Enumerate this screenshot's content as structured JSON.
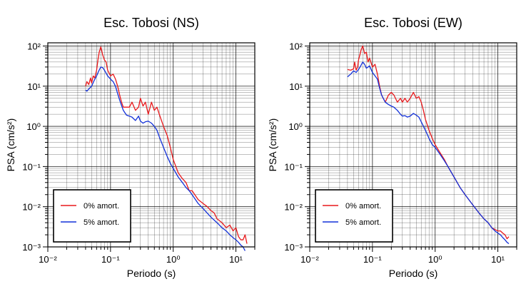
{
  "colors": {
    "undamped": "#e8191c",
    "damped": "#1230d8",
    "grid": "#000000"
  },
  "chart_data": [
    {
      "type": "line",
      "title": "Esc. Tobosi (NS)",
      "xlabel": "Periodo (s)",
      "ylabel": "PSA (cm/s²)",
      "xscale": "log",
      "yscale": "log",
      "xlim": [
        0.01,
        20
      ],
      "ylim": [
        0.001,
        120
      ],
      "xticks": [
        {
          "v": 0.01,
          "label": "10⁻²"
        },
        {
          "v": 0.1,
          "label": "10⁻¹"
        },
        {
          "v": 1,
          "label": "10⁰"
        },
        {
          "v": 10,
          "label": "10¹"
        }
      ],
      "yticks": [
        {
          "v": 0.001,
          "label": "10⁻³"
        },
        {
          "v": 0.01,
          "label": "10⁻²"
        },
        {
          "v": 0.1,
          "label": "10⁻¹"
        },
        {
          "v": 1,
          "label": "10⁰"
        },
        {
          "v": 10,
          "label": "10¹"
        },
        {
          "v": 100,
          "label": "10²"
        }
      ],
      "grid": true,
      "legend": {
        "position": "bottom-left",
        "entries": [
          "0% amort.",
          "5% amort."
        ]
      },
      "series": [
        {
          "name": "0% amort.",
          "color": "#e8191c",
          "x": [
            0.04,
            0.042,
            0.045,
            0.048,
            0.05,
            0.053,
            0.056,
            0.06,
            0.063,
            0.066,
            0.07,
            0.072,
            0.075,
            0.08,
            0.085,
            0.09,
            0.1,
            0.11,
            0.12,
            0.13,
            0.14,
            0.15,
            0.16,
            0.18,
            0.2,
            0.22,
            0.25,
            0.28,
            0.3,
            0.33,
            0.36,
            0.4,
            0.45,
            0.5,
            0.55,
            0.6,
            0.7,
            0.8,
            0.9,
            1.0,
            1.2,
            1.4,
            1.6,
            1.8,
            2.0,
            2.5,
            3.0,
            3.5,
            4.0,
            4.5,
            5.0,
            6.0,
            7.0,
            8.0,
            9.0,
            10.0,
            11.0,
            12.0,
            13.0,
            14.0,
            15.0
          ],
          "y": [
            10.0,
            13.0,
            11.0,
            16.0,
            12.0,
            18.0,
            16.0,
            25.0,
            45.0,
            70.0,
            95.0,
            80.0,
            60.0,
            45.0,
            40.0,
            25.0,
            18.0,
            20.0,
            15.0,
            10.0,
            6.0,
            4.0,
            3.0,
            3.0,
            3.0,
            4.0,
            2.5,
            3.0,
            5.0,
            3.2,
            4.0,
            2.0,
            4.0,
            2.5,
            3.0,
            2.0,
            1.0,
            0.6,
            0.3,
            0.15,
            0.07,
            0.05,
            0.04,
            0.025,
            0.025,
            0.015,
            0.012,
            0.01,
            0.008,
            0.007,
            0.005,
            0.004,
            0.003,
            0.0035,
            0.0025,
            0.003,
            0.0018,
            0.0015,
            0.0015,
            0.002,
            0.0012
          ]
        },
        {
          "name": "5% amort.",
          "color": "#1230d8",
          "x": [
            0.04,
            0.042,
            0.045,
            0.05,
            0.055,
            0.06,
            0.065,
            0.07,
            0.075,
            0.08,
            0.09,
            0.1,
            0.11,
            0.12,
            0.13,
            0.14,
            0.15,
            0.16,
            0.18,
            0.2,
            0.22,
            0.25,
            0.28,
            0.3,
            0.33,
            0.36,
            0.4,
            0.45,
            0.5,
            0.55,
            0.6,
            0.7,
            0.8,
            0.9,
            1.0,
            1.2,
            1.4,
            1.6,
            1.8,
            2.0,
            2.5,
            3.0,
            4.0,
            5.0,
            6.0,
            7.0,
            8.0,
            9.0,
            10.0,
            11.0,
            12.0,
            13.0,
            14.0
          ],
          "y": [
            8.0,
            7.5,
            8.5,
            10.0,
            14.0,
            18.0,
            24.0,
            30.0,
            29.0,
            25.0,
            18.0,
            15.0,
            13.0,
            10.0,
            6.5,
            4.5,
            3.3,
            2.5,
            1.9,
            1.8,
            1.7,
            1.4,
            1.8,
            1.35,
            1.2,
            1.3,
            1.35,
            1.2,
            1.0,
            0.8,
            0.55,
            0.3,
            0.18,
            0.12,
            0.09,
            0.055,
            0.04,
            0.03,
            0.025,
            0.02,
            0.012,
            0.009,
            0.0055,
            0.004,
            0.003,
            0.0025,
            0.002,
            0.0017,
            0.0015,
            0.0013,
            0.0011,
            0.001,
            0.0008
          ]
        }
      ]
    },
    {
      "type": "line",
      "title": "Esc. Tobosi (EW)",
      "xlabel": "Periodo (s)",
      "ylabel": "PSA (cm/s²)",
      "xscale": "log",
      "yscale": "log",
      "xlim": [
        0.01,
        20
      ],
      "ylim": [
        0.001,
        120
      ],
      "xticks": [
        {
          "v": 0.01,
          "label": "10⁻²"
        },
        {
          "v": 0.1,
          "label": "10⁻¹"
        },
        {
          "v": 1,
          "label": "10⁰"
        },
        {
          "v": 10,
          "label": "10¹"
        }
      ],
      "yticks": [
        {
          "v": 0.001,
          "label": "10⁻³"
        },
        {
          "v": 0.01,
          "label": "10⁻²"
        },
        {
          "v": 0.1,
          "label": "10⁻¹"
        },
        {
          "v": 1,
          "label": "10⁰"
        },
        {
          "v": 10,
          "label": "10¹"
        },
        {
          "v": 100,
          "label": "10²"
        }
      ],
      "grid": true,
      "legend": {
        "position": "bottom-left",
        "entries": [
          "0% amort.",
          "5% amort."
        ]
      },
      "series": [
        {
          "name": "0% amort.",
          "color": "#e8191c",
          "x": [
            0.04,
            0.045,
            0.05,
            0.052,
            0.055,
            0.058,
            0.06,
            0.063,
            0.066,
            0.07,
            0.075,
            0.08,
            0.085,
            0.09,
            0.1,
            0.11,
            0.12,
            0.13,
            0.14,
            0.16,
            0.18,
            0.2,
            0.22,
            0.25,
            0.28,
            0.3,
            0.33,
            0.36,
            0.4,
            0.45,
            0.5,
            0.55,
            0.6,
            0.65,
            0.7,
            0.8,
            0.9,
            1.0,
            1.2,
            1.4,
            1.6,
            2.0,
            2.5,
            3.0,
            4.0,
            5.0,
            6.0,
            7.0,
            8.0,
            9.0,
            10.0,
            11.0,
            12.0,
            13.0,
            14.0,
            15.0
          ],
          "y": [
            26.0,
            25.0,
            27.0,
            40.0,
            25.0,
            30.0,
            45.0,
            60.0,
            80.0,
            100.0,
            65.0,
            70.0,
            40.0,
            50.0,
            30.0,
            35.0,
            20.0,
            10.0,
            6.0,
            4.0,
            6.0,
            7.0,
            6.0,
            4.0,
            5.0,
            4.0,
            5.0,
            4.0,
            5.0,
            7.0,
            5.0,
            5.5,
            4.0,
            2.5,
            1.5,
            0.8,
            0.5,
            0.35,
            0.22,
            0.15,
            0.1,
            0.055,
            0.03,
            0.02,
            0.011,
            0.007,
            0.005,
            0.004,
            0.003,
            0.0027,
            0.0025,
            0.0025,
            0.0022,
            0.002,
            0.0016,
            0.0018
          ]
        },
        {
          "name": "5% amort.",
          "color": "#1230d8",
          "x": [
            0.04,
            0.045,
            0.05,
            0.055,
            0.06,
            0.065,
            0.07,
            0.075,
            0.08,
            0.09,
            0.1,
            0.11,
            0.12,
            0.13,
            0.14,
            0.16,
            0.18,
            0.2,
            0.22,
            0.25,
            0.28,
            0.3,
            0.33,
            0.36,
            0.4,
            0.45,
            0.5,
            0.55,
            0.6,
            0.7,
            0.8,
            0.9,
            1.0,
            1.2,
            1.4,
            1.6,
            2.0,
            2.5,
            3.0,
            4.0,
            5.0,
            6.0,
            7.0,
            8.0,
            9.0,
            10.0,
            11.0,
            12.0,
            13.0,
            14.0,
            15.0
          ],
          "y": [
            17.0,
            20.0,
            24.0,
            22.0,
            26.0,
            32.0,
            40.0,
            35.0,
            28.0,
            32.0,
            22.0,
            18.0,
            15.0,
            9.0,
            6.0,
            4.0,
            3.5,
            3.2,
            3.0,
            2.5,
            2.0,
            1.8,
            1.85,
            1.7,
            1.8,
            2.1,
            1.9,
            1.7,
            1.3,
            0.8,
            0.5,
            0.35,
            0.3,
            0.2,
            0.14,
            0.1,
            0.055,
            0.03,
            0.02,
            0.011,
            0.007,
            0.005,
            0.004,
            0.003,
            0.0025,
            0.0022,
            0.002,
            0.0017,
            0.0015,
            0.0013,
            0.0012
          ]
        }
      ]
    }
  ]
}
